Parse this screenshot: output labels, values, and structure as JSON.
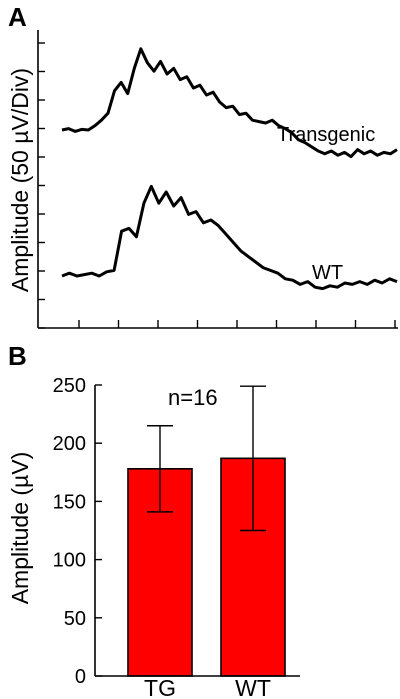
{
  "chart_data": [
    {
      "type": "line",
      "panel": "A",
      "ylabel": "Amplitude (50 µV/Div)",
      "xlabel": "",
      "grid": false,
      "series": [
        {
          "name": "Transgenic",
          "values": [
            0.0,
            0.05,
            -0.05,
            0.02,
            0.0,
            0.15,
            0.35,
            0.6,
            1.4,
            1.7,
            1.3,
            2.2,
            2.9,
            2.4,
            2.1,
            2.45,
            2.0,
            2.2,
            1.8,
            1.9,
            1.5,
            1.6,
            1.25,
            1.35,
            1.0,
            0.8,
            0.85,
            0.55,
            0.6,
            0.35,
            0.3,
            0.25,
            0.35,
            0.15,
            0.05,
            -0.1,
            -0.35,
            -0.45,
            -0.6,
            -0.75,
            -0.85,
            -0.75,
            -0.9,
            -0.8,
            -0.95,
            -0.7,
            -0.85,
            -0.75,
            -0.9,
            -0.8,
            -0.85,
            -0.7
          ]
        },
        {
          "name": "WT",
          "values": [
            0.0,
            0.1,
            0.0,
            0.05,
            0.1,
            0.0,
            0.15,
            0.2,
            1.6,
            1.7,
            1.4,
            2.6,
            3.2,
            2.6,
            3.0,
            2.5,
            2.8,
            2.2,
            2.3,
            1.9,
            2.0,
            1.8,
            1.5,
            1.2,
            0.9,
            0.7,
            0.5,
            0.3,
            0.2,
            0.1,
            -0.1,
            -0.15,
            -0.3,
            -0.2,
            -0.4,
            -0.45,
            -0.35,
            -0.4,
            -0.25,
            -0.3,
            -0.2,
            -0.3,
            -0.15,
            -0.25,
            -0.1,
            -0.2
          ]
        }
      ]
    },
    {
      "type": "bar",
      "panel": "B",
      "categories": [
        "TG",
        "WT"
      ],
      "values": [
        178,
        187
      ],
      "errors": [
        37,
        62
      ],
      "ylabel": "Amplitude (µV)",
      "xlabel": "",
      "ylim": [
        0,
        250
      ],
      "yticks": [
        0,
        50,
        100,
        150,
        200,
        250
      ],
      "annotation": "n=16",
      "bar_color": "#ff0000",
      "grid": false
    }
  ]
}
